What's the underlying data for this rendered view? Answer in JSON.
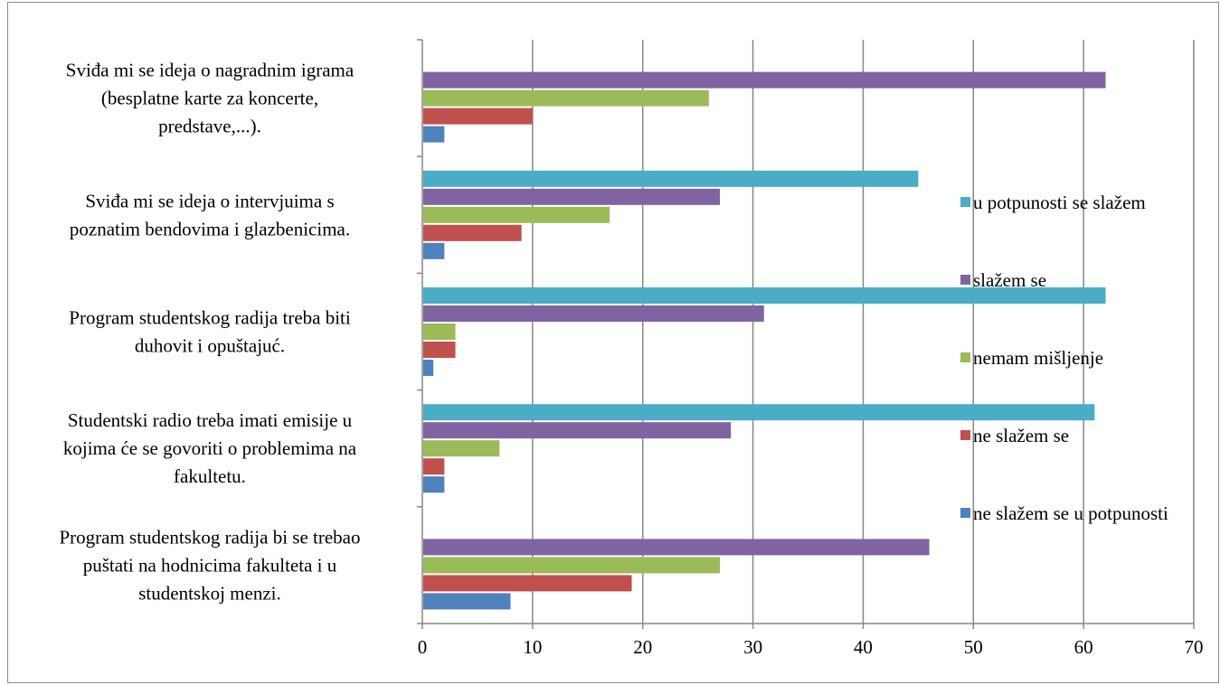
{
  "chart_data": {
    "type": "bar",
    "orientation": "horizontal",
    "categories": [
      "Program studentskog radija bi se trebao puštati na hodnicima fakulteta i u studentskoj menzi.",
      "Studentski radio treba imati emisije u kojima će se govoriti o problemima na fakultetu.",
      "Program studentskog radija treba biti duhovit i opuštajuć.",
      "Sviđa mi se ideja o intervjuima s poznatim bendovima i glazbenicima.",
      "Sviđa mi se ideja o nagradnim igrama (besplatne karte za koncerte, predstave,...)."
    ],
    "category_lines": [
      [
        "Program studentskog radija bi se trebao",
        "puštati na hodnicima fakulteta i u",
        "studentskoj menzi."
      ],
      [
        "Studentski radio treba imati emisije u",
        "kojima će se govoriti o problemima na",
        "fakultetu."
      ],
      [
        "Program studentskog radija treba biti",
        "duhovit i opuštajuć."
      ],
      [
        "Sviđa mi se ideja o intervjuima s",
        "poznatim bendovima i glazbenicima."
      ],
      [
        "Sviđa mi se ideja o nagradnim igrama",
        "(besplatne karte za koncerte,",
        "predstave,...)."
      ]
    ],
    "series": [
      {
        "name": "ne slažem se u potpunosti",
        "color": "#4f81bd",
        "values": [
          8,
          2,
          1,
          2,
          2
        ]
      },
      {
        "name": "ne slažem se",
        "color": "#c0504d",
        "values": [
          19,
          2,
          3,
          9,
          10
        ]
      },
      {
        "name": "nemam mišljenje",
        "color": "#9bbb59",
        "values": [
          27,
          7,
          3,
          17,
          26
        ]
      },
      {
        "name": "slažem se",
        "color": "#8064a2",
        "values": [
          46,
          28,
          31,
          27,
          62
        ]
      },
      {
        "name": "u potpunosti se slažem",
        "color": "#4bacc6",
        "values": [
          0,
          61,
          62,
          45,
          0
        ]
      }
    ],
    "legend_order": [
      "u potpunosti se slažem",
      "slažem se",
      "nemam mišljenje",
      "ne slažem se",
      "ne slažem se u potpunosti"
    ],
    "xlim": [
      0,
      70
    ],
    "xticks": [
      0,
      10,
      20,
      30,
      40,
      50,
      60,
      70
    ],
    "grid": true,
    "legend_position": "right",
    "colors": {
      "gridline": "#868686",
      "axis": "#868686"
    }
  }
}
